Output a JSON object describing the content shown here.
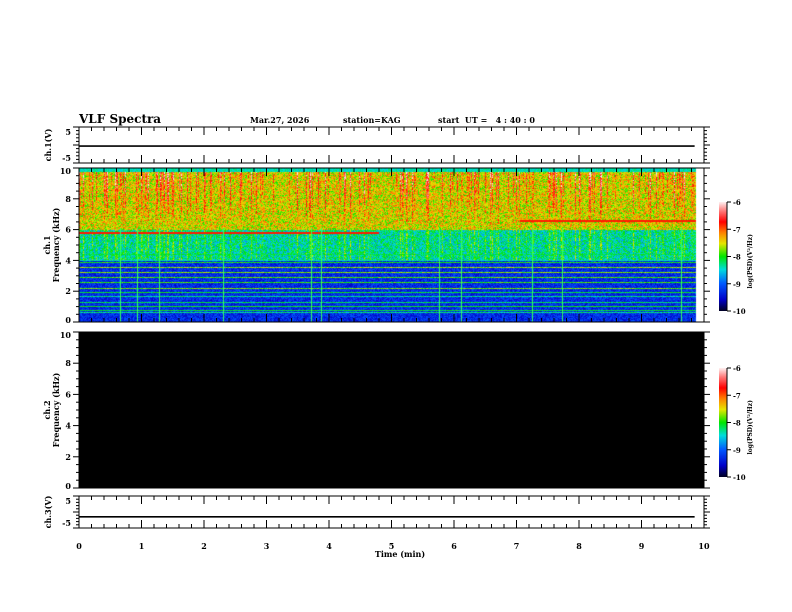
{
  "header": {
    "title": "VLF Spectra",
    "date": "Mar.27, 2026",
    "station": "station=KAG",
    "start": "start  UT =   4 : 40 : 0"
  },
  "chart_data": [
    {
      "type": "line",
      "name": "ch1",
      "ylabel": "ch.1(V)",
      "ylim": [
        -5,
        5
      ],
      "yticks": [
        "5",
        "-5"
      ],
      "xlim": [
        0,
        10
      ],
      "level": -0.3,
      "xend": 9.85
    },
    {
      "type": "heatmap",
      "name": "ch1-spectrogram",
      "ylabel": "ch.1\nFrequency (kHz)",
      "ylabel_lines": [
        "ch.1",
        "Frequency (kHz)"
      ],
      "ylim": [
        0,
        10
      ],
      "yticks": [
        "0",
        "2",
        "4",
        "6",
        "8",
        "10"
      ],
      "xlim": [
        0,
        10
      ],
      "xend": 9.85,
      "colorbar": {
        "label": "log(PSD)(V²/Hz)",
        "range": [
          -10,
          -6
        ],
        "ticks": [
          "-6",
          "-7",
          "-8",
          "-9",
          "-10"
        ]
      },
      "description_bands_khz": {
        "high_activity": [
          6,
          10
        ],
        "moderate": [
          4,
          6
        ],
        "low": [
          0,
          4
        ]
      }
    },
    {
      "type": "heatmap",
      "name": "ch2-spectrogram",
      "ylabel_lines": [
        "ch.2",
        "Frequency (kHz)"
      ],
      "ylim": [
        0,
        10
      ],
      "yticks": [
        "0",
        "2",
        "4",
        "6",
        "8",
        "10"
      ],
      "xlim": [
        0,
        10
      ],
      "colorbar": {
        "label": "log(PSD)(V²/Hz)",
        "range": [
          -10,
          -6
        ],
        "ticks": [
          "-6",
          "-7",
          "-8",
          "-9",
          "-10"
        ]
      },
      "fill": "no data (black)"
    },
    {
      "type": "line",
      "name": "ch3",
      "ylabel": "ch.3(V)",
      "ylim": [
        -5,
        5
      ],
      "yticks": [
        "5",
        "-5"
      ],
      "xlim": [
        0,
        10
      ],
      "level": -1.5,
      "xend": 9.85,
      "xlabel": "Time (min)",
      "xticks": [
        "0",
        "1",
        "2",
        "3",
        "4",
        "5",
        "6",
        "7",
        "8",
        "9",
        "10"
      ]
    }
  ]
}
